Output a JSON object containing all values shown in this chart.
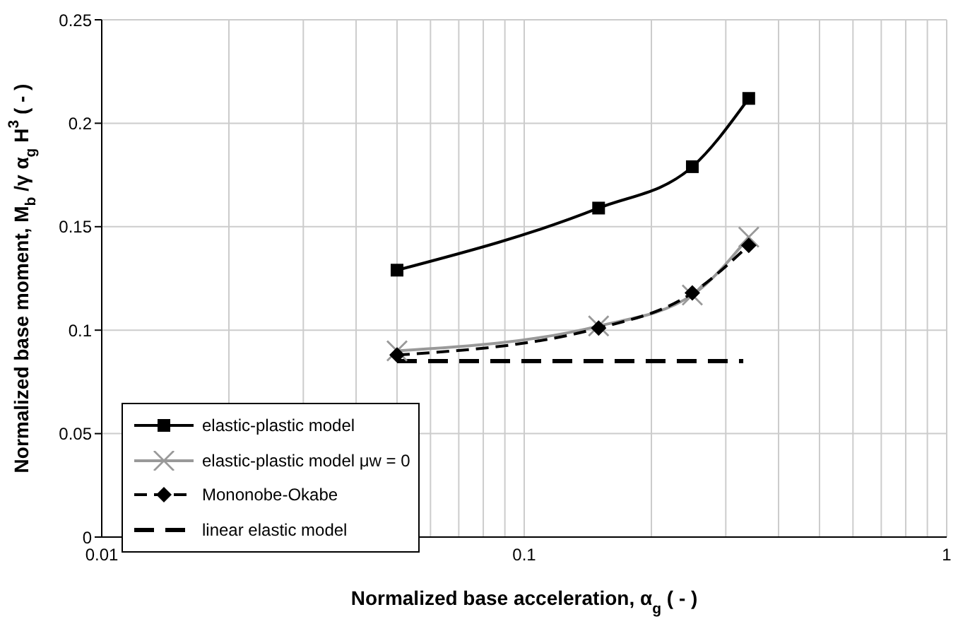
{
  "chart_data": {
    "type": "line",
    "xlabel": "Normalized base acceleration, α$_{g}$  ( - )",
    "ylabel": "Normalized base moment, M$_{b}$ /γ α$_{g}$ H$^{3}$ ( - )",
    "log": "x",
    "xlim": [
      0.01,
      1
    ],
    "xticks": [
      0.01,
      {
        "value": 0.02,
        "label": null
      },
      {
        "value": 0.03,
        "label": null
      },
      {
        "value": 0.04,
        "label": null
      },
      {
        "value": 0.05,
        "label": null
      },
      {
        "value": 0.06,
        "label": null
      },
      {
        "value": 0.07,
        "label": null
      },
      {
        "value": 0.08,
        "label": null
      },
      {
        "value": 0.09,
        "label": null
      },
      0.1,
      {
        "value": 0.2,
        "label": null
      },
      {
        "value": 0.3,
        "label": null
      },
      {
        "value": 0.4,
        "label": null
      },
      {
        "value": 0.5,
        "label": null
      },
      {
        "value": 0.6,
        "label": null
      },
      {
        "value": 0.7,
        "label": null
      },
      {
        "value": 0.8,
        "label": null
      },
      {
        "value": 0.9,
        "label": null
      },
      1
    ],
    "ylim": [
      0,
      0.25
    ],
    "yticks": [
      0,
      0.05,
      0.1,
      0.15,
      0.2,
      0.25
    ],
    "grid": true,
    "legend": "bottom left",
    "series": [
      {
        "name": "elastic-plastic model",
        "color": "#000000",
        "x": [
          0.05,
          0.15,
          0.25,
          0.34
        ],
        "values": [
          0.129,
          0.159,
          0.179,
          0.212
        ],
        "marker": "square",
        "line_style": "solid"
      },
      {
        "name": "elastic-plastic model μw = 0",
        "color": "#999999",
        "x": [
          0.05,
          0.15,
          0.25,
          0.34
        ],
        "values": [
          0.09,
          0.102,
          0.117,
          0.145
        ],
        "marker": "cross",
        "line_style": "solid"
      },
      {
        "name": "Mononobe-Okabe",
        "color": "#000000",
        "x": [
          0.05,
          0.15,
          0.25,
          0.34
        ],
        "values": [
          0.088,
          0.101,
          0.118,
          0.141
        ],
        "marker": "diamond",
        "line_style": "dashed"
      },
      {
        "name": "linear elastic model",
        "color": "#000000",
        "x": [
          0.05,
          0.33
        ],
        "values": [
          0.085,
          0.085
        ],
        "marker": "none",
        "line_style": "dashed"
      }
    ]
  }
}
